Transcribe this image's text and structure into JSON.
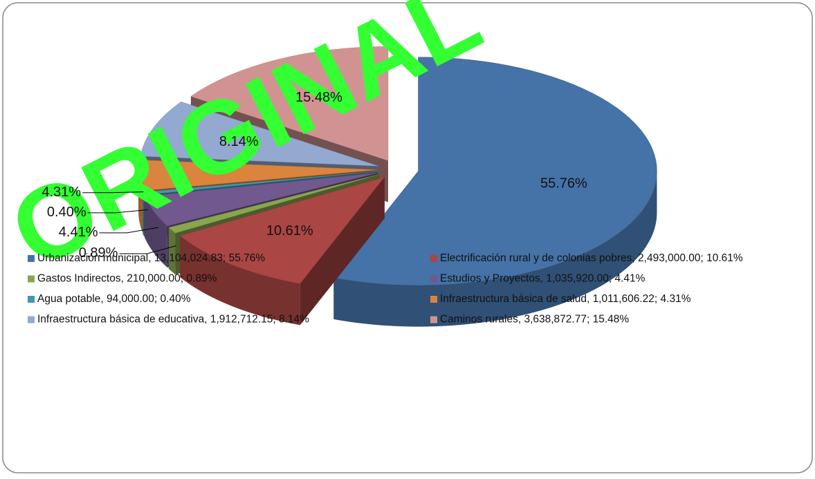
{
  "chart_data": {
    "type": "pie",
    "watermark": "ORIGINAL",
    "categories": [
      "Urbanización municipal",
      "Electrificación rural y de colonias pobres",
      "Gastos Indirectos",
      "Estudios y Proyectos",
      "Agua potable",
      "Infraestructura básica de salud",
      "Infraestructura básica de educativa",
      "Caminos rurales"
    ],
    "values": [
      55.76,
      10.61,
      0.89,
      4.41,
      0.4,
      4.31,
      8.14,
      15.48
    ],
    "value_labels": [
      "55.76%",
      "10.61%",
      "0.89%",
      "4.41%",
      "0.40%",
      "4.31%",
      "8.14%",
      "15.48%"
    ],
    "legend": [
      "Urbanización municipal, 13,104,024.83; 55.76%",
      "Electrificación rural y de colonias pobres, 2,493,000.00; 10.61%",
      "Gastos Indirectos, 210,000.00; 0.89%",
      "Estudios y Proyectos, 1,035,920.00; 4.41%",
      "Agua potable, 94,000.00; 0.40%",
      "Infraestructura básica de salud, 1,011,606.22; 4.31%",
      "Infraestructura básica de educativa, 1,912,712.15; 8.14%",
      "Caminos rurales, 3,638,872.77; 15.48%"
    ],
    "colors": [
      "#4572a7",
      "#aa4643",
      "#89a54e",
      "#71588f",
      "#4198af",
      "#db843d",
      "#93a9cf",
      "#d19392"
    ],
    "legend_position": "bottom"
  }
}
